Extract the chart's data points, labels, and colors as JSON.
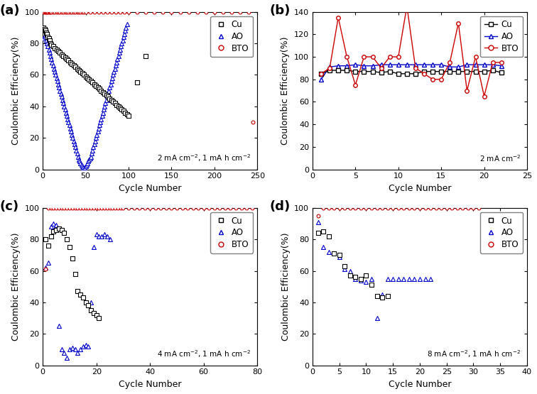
{
  "colors": {
    "Cu": "#000000",
    "AO": "#0000cc",
    "BTO": "#cc0000"
  },
  "ylabel": "Coulombic Efficiency(%)",
  "xlabel": "Cycle Number",
  "panel_a": {
    "label": "(a)",
    "annotation": "2 mA cm$^{-2}$, 1 mA h cm$^{-2}$",
    "xlim": [
      0,
      250
    ],
    "ylim": [
      0,
      100
    ],
    "xticks": [
      0,
      50,
      100,
      150,
      200,
      250
    ],
    "yticks": [
      0,
      20,
      40,
      60,
      80,
      100
    ],
    "Cu_x": [
      1,
      2,
      3,
      4,
      5,
      6,
      7,
      8,
      9,
      10,
      12,
      14,
      16,
      18,
      20,
      22,
      24,
      26,
      28,
      30,
      32,
      34,
      36,
      38,
      40,
      42,
      44,
      46,
      48,
      50,
      52,
      54,
      56,
      58,
      60,
      62,
      64,
      66,
      68,
      70,
      72,
      74,
      76,
      78,
      80,
      82,
      84,
      86,
      88,
      90,
      92,
      94,
      96,
      98,
      100,
      110,
      120
    ],
    "Cu_y": [
      90,
      89,
      88,
      87,
      86,
      84,
      83,
      82,
      80,
      79,
      78,
      77,
      76,
      75,
      74,
      73,
      72,
      71,
      70,
      69,
      68,
      67,
      66,
      65,
      64,
      63,
      62,
      61,
      60,
      59,
      58,
      57,
      56,
      55,
      54,
      53,
      52,
      51,
      50,
      49,
      48,
      47,
      46,
      45,
      44,
      43,
      42,
      41,
      40,
      39,
      38,
      37,
      36,
      35,
      34,
      55,
      72
    ],
    "BTO_x": [
      1,
      2,
      3,
      4,
      5,
      6,
      7,
      8,
      9,
      10,
      12,
      14,
      16,
      18,
      20,
      22,
      24,
      26,
      28,
      30,
      32,
      34,
      36,
      38,
      40,
      42,
      44,
      46,
      48,
      50,
      55,
      60,
      65,
      70,
      75,
      80,
      85,
      90,
      95,
      100,
      110,
      120,
      130,
      140,
      150,
      160,
      170,
      180,
      190,
      200,
      210,
      220,
      230,
      240,
      245
    ],
    "BTO_y": [
      100,
      100,
      100,
      100,
      100,
      100,
      100,
      100,
      100,
      100,
      100,
      100,
      100,
      100,
      100,
      100,
      100,
      100,
      100,
      100,
      100,
      100,
      100,
      100,
      100,
      100,
      100,
      100,
      100,
      100,
      100,
      100,
      100,
      100,
      100,
      100,
      100,
      100,
      100,
      100,
      100,
      100,
      100,
      100,
      100,
      100,
      100,
      100,
      100,
      100,
      100,
      100,
      100,
      100,
      30
    ],
    "AO_x": [
      1,
      2,
      3,
      4,
      5,
      6,
      7,
      8,
      9,
      10,
      11,
      12,
      13,
      14,
      15,
      16,
      17,
      18,
      19,
      20,
      21,
      22,
      23,
      24,
      25,
      26,
      27,
      28,
      29,
      30,
      31,
      32,
      33,
      34,
      35,
      36,
      37,
      38,
      39,
      40,
      41,
      42,
      43,
      44,
      45,
      46,
      47,
      48,
      49,
      50,
      51,
      52,
      53,
      54,
      55,
      56,
      57,
      58,
      59,
      60,
      61,
      62,
      63,
      64,
      65,
      66,
      67,
      68,
      69,
      70,
      71,
      72,
      73,
      74,
      75,
      76,
      77,
      78,
      79,
      80,
      81,
      82,
      83,
      84,
      85,
      86,
      87,
      88,
      89,
      90,
      91,
      92,
      93,
      94,
      95,
      96,
      97,
      98
    ],
    "AO_y": [
      83,
      85,
      84,
      82,
      80,
      78,
      76,
      74,
      72,
      70,
      68,
      66,
      64,
      62,
      60,
      58,
      56,
      54,
      52,
      50,
      48,
      46,
      44,
      42,
      40,
      38,
      36,
      34,
      32,
      30,
      28,
      26,
      24,
      22,
      20,
      18,
      16,
      14,
      12,
      10,
      8,
      6,
      5,
      4,
      3,
      2,
      1,
      0,
      1,
      2,
      3,
      4,
      5,
      6,
      7,
      8,
      10,
      12,
      14,
      16,
      18,
      20,
      22,
      24,
      26,
      28,
      30,
      32,
      34,
      36,
      38,
      40,
      42,
      44,
      46,
      48,
      50,
      52,
      54,
      56,
      58,
      60,
      62,
      64,
      66,
      68,
      70,
      72,
      74,
      76,
      78,
      80,
      82,
      84,
      86,
      88,
      90,
      92
    ]
  },
  "panel_b": {
    "label": "(b)",
    "annotation": "2 mA cm$^{-2}$",
    "xlim": [
      0,
      25
    ],
    "ylim": [
      0,
      140
    ],
    "xticks": [
      0,
      5,
      10,
      15,
      20,
      25
    ],
    "yticks": [
      0,
      20,
      40,
      60,
      80,
      100,
      120,
      140
    ],
    "Cu_x": [
      1,
      2,
      3,
      4,
      5,
      6,
      7,
      8,
      9,
      10,
      11,
      12,
      13,
      14,
      15,
      16,
      17,
      18,
      19,
      20,
      21,
      22
    ],
    "Cu_y": [
      85,
      88,
      88,
      88,
      87,
      87,
      87,
      86,
      87,
      85,
      85,
      85,
      87,
      87,
      87,
      87,
      87,
      87,
      87,
      87,
      88,
      86
    ],
    "AO_x": [
      1,
      2,
      3,
      4,
      5,
      6,
      7,
      8,
      9,
      10,
      11,
      12,
      13,
      14,
      15,
      16,
      17,
      18,
      19,
      20,
      21,
      22
    ],
    "AO_y": [
      80,
      91,
      92,
      92,
      93,
      92,
      92,
      93,
      93,
      93,
      93,
      93,
      93,
      93,
      93,
      91,
      91,
      93,
      93,
      93,
      93,
      92
    ],
    "BTO_x": [
      1,
      2,
      3,
      4,
      5,
      6,
      7,
      8,
      9,
      10,
      11,
      12,
      13,
      14,
      15,
      16,
      17,
      18,
      19,
      20,
      21,
      22
    ],
    "BTO_y": [
      85,
      90,
      135,
      100,
      75,
      100,
      100,
      90,
      100,
      100,
      145,
      90,
      85,
      80,
      80,
      95,
      130,
      70,
      100,
      65,
      95,
      95
    ]
  },
  "panel_c": {
    "label": "(c)",
    "annotation": "4 mA cm$^{-2}$, 1 mA h cm$^{-2}$",
    "xlim": [
      0,
      80
    ],
    "ylim": [
      0,
      100
    ],
    "xticks": [
      0,
      20,
      40,
      60,
      80
    ],
    "yticks": [
      0,
      20,
      40,
      60,
      80,
      100
    ],
    "Cu_x": [
      1,
      2,
      3,
      4,
      5,
      6,
      7,
      8,
      9,
      10,
      11,
      12,
      13,
      14,
      15,
      16,
      17,
      18,
      19,
      20,
      21
    ],
    "Cu_y": [
      80,
      76,
      82,
      85,
      86,
      87,
      86,
      84,
      80,
      75,
      68,
      58,
      47,
      45,
      43,
      40,
      38,
      35,
      33,
      32,
      30
    ],
    "AO_x": [
      1,
      2,
      3,
      4,
      5,
      6,
      7,
      8,
      9,
      10,
      11,
      12,
      13,
      14,
      15,
      16,
      17,
      18,
      19,
      20,
      21,
      22,
      23,
      24,
      25
    ],
    "AO_y": [
      62,
      65,
      88,
      90,
      89,
      25,
      10,
      8,
      5,
      10,
      11,
      10,
      8,
      10,
      12,
      13,
      12,
      40,
      75,
      83,
      82,
      82,
      83,
      82,
      80
    ],
    "BTO_x": [
      1,
      2,
      3,
      4,
      5,
      6,
      7,
      8,
      9,
      10,
      11,
      12,
      13,
      14,
      15,
      16,
      17,
      18,
      19,
      20,
      21,
      22,
      23,
      24,
      25,
      26,
      27,
      28,
      29,
      30,
      32,
      34,
      36,
      38,
      40,
      42,
      44,
      46,
      48,
      50,
      52,
      54,
      56,
      58,
      60,
      62,
      64,
      66,
      68,
      70,
      72,
      74,
      76,
      78
    ],
    "BTO_y": [
      61,
      100,
      100,
      100,
      100,
      100,
      100,
      100,
      100,
      100,
      100,
      100,
      100,
      100,
      100,
      100,
      100,
      100,
      100,
      100,
      100,
      100,
      100,
      100,
      100,
      100,
      100,
      100,
      100,
      100,
      100,
      100,
      100,
      100,
      100,
      100,
      100,
      100,
      100,
      100,
      100,
      100,
      100,
      100,
      100,
      100,
      100,
      100,
      100,
      100,
      100,
      100,
      100,
      100
    ]
  },
  "panel_d": {
    "label": "(d)",
    "annotation": "8 mA cm$^{-2}$, 1 mA h cm$^{-2}$",
    "xlim": [
      0,
      40
    ],
    "ylim": [
      0,
      100
    ],
    "xticks": [
      0,
      5,
      10,
      15,
      20,
      25,
      30,
      35,
      40
    ],
    "yticks": [
      0,
      20,
      40,
      60,
      80,
      100
    ],
    "Cu_x": [
      1,
      2,
      3,
      4,
      5,
      6,
      7,
      8,
      9,
      10,
      11,
      12,
      13,
      14
    ],
    "Cu_y": [
      84,
      85,
      82,
      71,
      70,
      63,
      57,
      56,
      55,
      57,
      51,
      44,
      43,
      44
    ],
    "AO_x": [
      1,
      2,
      3,
      4,
      5,
      6,
      7,
      8,
      9,
      10,
      11,
      12,
      13,
      14,
      15,
      16,
      17,
      18,
      19,
      20,
      21,
      22
    ],
    "AO_y": [
      91,
      75,
      72,
      71,
      69,
      61,
      60,
      55,
      54,
      53,
      55,
      30,
      45,
      55,
      55,
      55,
      55,
      55,
      55,
      55,
      55,
      55
    ],
    "BTO_x": [
      1,
      2,
      3,
      4,
      5,
      6,
      7,
      8,
      9,
      10,
      11,
      12,
      13,
      14,
      15,
      16,
      17,
      18,
      19,
      20,
      21,
      22,
      23,
      24,
      25,
      26,
      27,
      28,
      29,
      30,
      31
    ],
    "BTO_y": [
      95,
      100,
      100,
      100,
      100,
      100,
      100,
      100,
      100,
      100,
      100,
      100,
      100,
      100,
      100,
      100,
      100,
      100,
      100,
      100,
      100,
      100,
      100,
      100,
      100,
      100,
      100,
      100,
      100,
      100,
      100
    ]
  }
}
